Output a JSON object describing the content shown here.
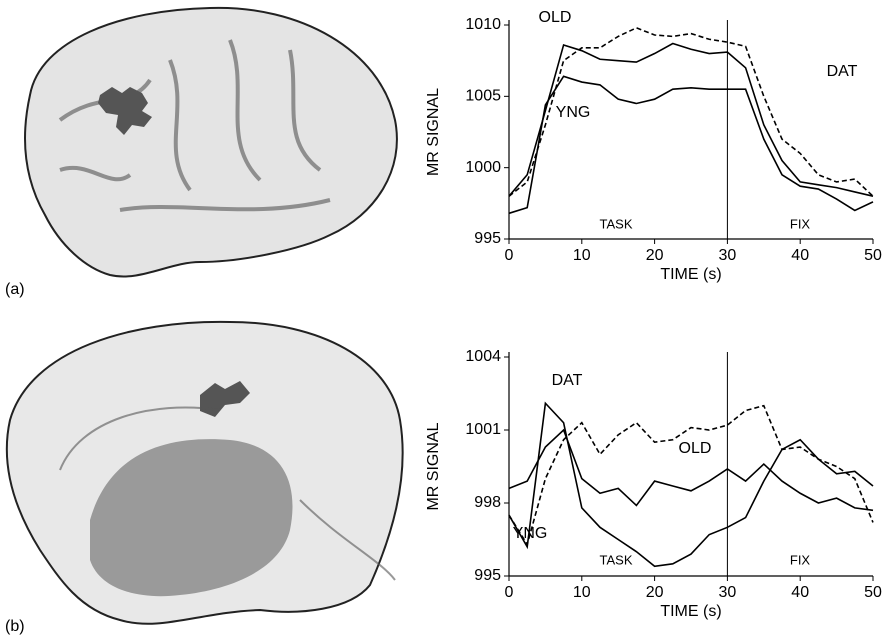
{
  "chart_data": [
    {
      "type": "line",
      "panel_label": "(a)",
      "xlabel": "TIME (s)",
      "ylabel": "MR SIGNAL",
      "xlim": [
        0,
        50
      ],
      "xticks": [
        0,
        10,
        20,
        30,
        40,
        50
      ],
      "ylim": [
        995,
        1010
      ],
      "yticks": [
        995,
        1000,
        1005,
        1010
      ],
      "vline": 30,
      "annotations": [
        "TASK",
        "FIX"
      ],
      "x": [
        0,
        2.5,
        5,
        7.5,
        10,
        12.5,
        15,
        17.5,
        20,
        22.5,
        25,
        27.5,
        30,
        32.5,
        35,
        37.5,
        40,
        42.5,
        45,
        47.5,
        50
      ],
      "series": [
        {
          "name": "OLD",
          "color": "#000000",
          "dashed": false,
          "values": [
            998.0,
            999.5,
            1004,
            1008.6,
            1008.2,
            1007.6,
            1007.5,
            1007.4,
            1008,
            1008.7,
            1008.3,
            1008.0,
            1008.1,
            1007,
            1003,
            1000.5,
            999.0,
            998.8,
            998.6,
            998.3,
            998.0
          ]
        },
        {
          "name": "DAT",
          "color": "#000000",
          "dashed": true,
          "values": [
            998.0,
            999.0,
            1003,
            1007.5,
            1008.4,
            1008.4,
            1009.2,
            1009.8,
            1009.3,
            1009.2,
            1009.4,
            1009.0,
            1008.8,
            1008.5,
            1005,
            1002,
            1001,
            999.5,
            999.0,
            999.2,
            998.0
          ]
        },
        {
          "name": "YNG",
          "color": "#000000",
          "dashed": false,
          "values": [
            996.8,
            997.2,
            1004.4,
            1006.4,
            1006.0,
            1005.8,
            1004.8,
            1004.5,
            1004.8,
            1005.5,
            1005.6,
            1005.5,
            1005.5,
            1005.5,
            1002,
            999.5,
            998.7,
            998.5,
            997.8,
            997.0,
            997.6
          ]
        }
      ]
    },
    {
      "type": "line",
      "panel_label": "(b)",
      "xlabel": "TIME (s)",
      "ylabel": "MR SIGNAL",
      "xlim": [
        0,
        50
      ],
      "xticks": [
        0,
        10,
        20,
        30,
        40,
        50
      ],
      "ylim": [
        995,
        1004
      ],
      "yticks": [
        995,
        998,
        1001,
        1004
      ],
      "vline": 30,
      "annotations": [
        "TASK",
        "FIX"
      ],
      "x": [
        0,
        2.5,
        5,
        7.5,
        10,
        12.5,
        15,
        17.5,
        20,
        22.5,
        25,
        27.5,
        30,
        32.5,
        35,
        37.5,
        40,
        42.5,
        45,
        47.5,
        50
      ],
      "series": [
        {
          "name": "DAT",
          "color": "#000000",
          "dashed": true,
          "values": [
            997.5,
            996.3,
            999,
            1000.6,
            1001.3,
            1000,
            1000.8,
            1001.3,
            1000.5,
            1000.6,
            1001.1,
            1001,
            1001.2,
            1001.8,
            1002,
            1000.2,
            1000.3,
            999.8,
            999.5,
            999,
            997.2
          ]
        },
        {
          "name": "OLD",
          "color": "#000000",
          "dashed": false,
          "values": [
            998.6,
            998.9,
            1000.3,
            1001.0,
            999.0,
            998.4,
            998.6,
            997.9,
            998.9,
            998.7,
            998.5,
            998.9,
            999.4,
            998.9,
            999.6,
            998.9,
            998.4,
            998.0,
            998.2,
            997.8,
            997.7
          ]
        },
        {
          "name": "YNG",
          "color": "#000000",
          "dashed": false,
          "values": [
            997.5,
            996.2,
            1002.1,
            1001.3,
            997.8,
            997.0,
            996.5,
            996.0,
            995.4,
            995.5,
            995.9,
            996.7,
            997.0,
            997.4,
            998.9,
            1000.2,
            1000.6,
            999.8,
            999.2,
            999.3,
            998.7
          ]
        }
      ]
    }
  ]
}
